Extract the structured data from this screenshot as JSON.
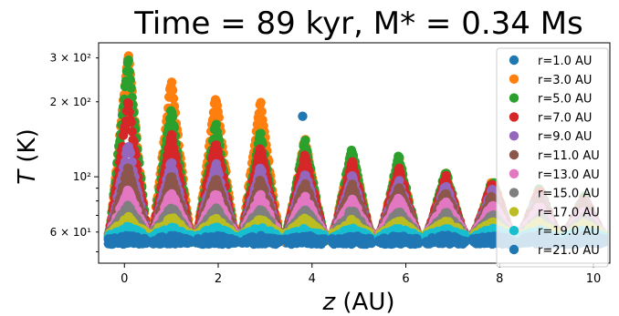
{
  "chart_data": {
    "type": "scatter",
    "title": "Time = 89 kyr, M* = 0.34 Ms",
    "xlabel_italic": "z",
    "xlabel_rest": " (AU)",
    "ylabel_italic": "T",
    "ylabel_rest": " (K)",
    "xlim": [
      -0.55,
      10.35
    ],
    "ylim": [
      45,
      345
    ],
    "yscale": "log",
    "xticks": [
      0,
      2,
      4,
      6,
      8,
      10
    ],
    "xtick_labels": [
      "0",
      "2",
      "4",
      "6",
      "8",
      "10"
    ],
    "yticks_major": [
      100
    ],
    "yticks_major_labels": [
      "10²"
    ],
    "yticks_minor": [
      60,
      200,
      300
    ],
    "yticks_minor_labels": [
      "6 × 10¹",
      "2 × 10²",
      "3 × 10²"
    ],
    "legend_position": "right",
    "peak_positions_z": [
      0.08,
      1.0,
      1.95,
      2.9,
      3.85,
      4.85,
      5.85,
      6.85,
      7.85,
      8.85,
      9.8
    ],
    "outlier": {
      "z": 3.8,
      "T": 175,
      "series": "r=1.0 AU"
    },
    "series": [
      {
        "name": "r=1.0 AU",
        "color": "#1f77b4",
        "base": 55,
        "peaks": [
          55,
          55,
          55,
          55,
          55,
          55,
          55,
          55,
          55,
          55,
          55
        ]
      },
      {
        "name": "r=3.0 AU",
        "color": "#ff7f0e",
        "base": 56,
        "peaks": [
          315,
          245,
          212,
          202,
          142,
          128,
          118,
          103,
          96,
          88,
          82
        ]
      },
      {
        "name": "r=5.0 AU",
        "color": "#2ca02c",
        "base": 56,
        "peaks": [
          300,
          190,
          165,
          150,
          140,
          130,
          120,
          105,
          97,
          89,
          83
        ]
      },
      {
        "name": "r=7.0 AU",
        "color": "#d62728",
        "base": 57,
        "peaks": [
          200,
          150,
          140,
          132,
          122,
          114,
          108,
          100,
          94,
          87,
          81
        ]
      },
      {
        "name": "r=9.0 AU",
        "color": "#9467bd",
        "base": 57,
        "peaks": [
          135,
          115,
          112,
          108,
          104,
          100,
          96,
          92,
          88,
          84,
          80
        ]
      },
      {
        "name": "r=11.0 AU",
        "color": "#8c564b",
        "base": 58,
        "peaks": [
          108,
          100,
          98,
          96,
          94,
          92,
          90,
          87,
          84,
          81,
          78
        ]
      },
      {
        "name": "r=13.0 AU",
        "color": "#e377c2",
        "base": 58,
        "peaks": [
          88,
          86,
          85,
          84,
          83,
          82,
          81,
          79,
          77,
          75,
          73
        ]
      },
      {
        "name": "r=15.0 AU",
        "color": "#7f7f7f",
        "base": 58,
        "peaks": [
          76,
          75,
          74,
          74,
          73,
          73,
          72,
          71,
          70,
          69,
          68
        ]
      },
      {
        "name": "r=17.0 AU",
        "color": "#bcbd22",
        "base": 58,
        "peaks": [
          68,
          68,
          67,
          67,
          67,
          66,
          66,
          66,
          65,
          65,
          64
        ]
      },
      {
        "name": "r=19.0 AU",
        "color": "#17becf",
        "base": 57,
        "peaks": [
          62,
          62,
          62,
          62,
          61,
          61,
          61,
          61,
          61,
          60,
          60
        ]
      },
      {
        "name": "r=21.0 AU",
        "color": "#1f77b4",
        "base": 55,
        "peaks": [
          57,
          57,
          57,
          57,
          57,
          57,
          57,
          57,
          57,
          57,
          57
        ]
      }
    ]
  }
}
